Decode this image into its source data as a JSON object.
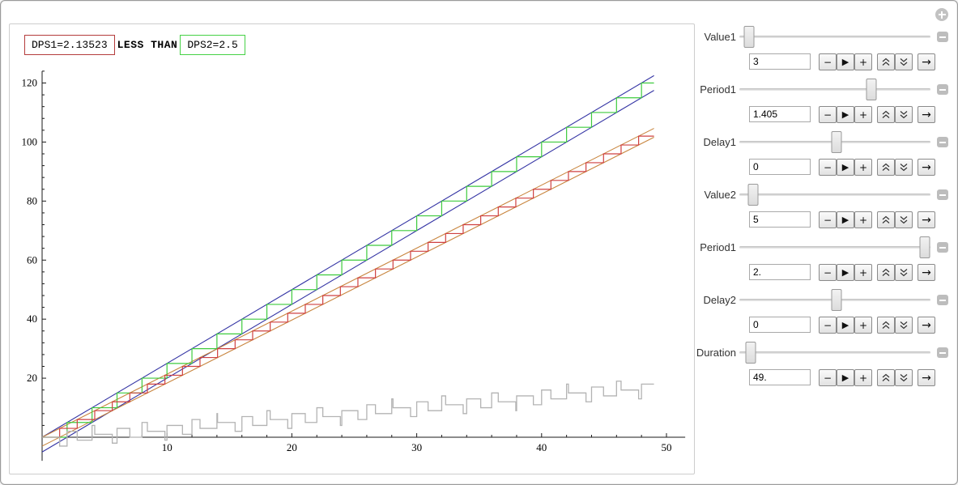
{
  "chart_data": {
    "type": "line",
    "title": "",
    "xlabel": "",
    "ylabel": "",
    "xlim": [
      0,
      51.5
    ],
    "ylim": [
      -8,
      124
    ],
    "x_ticks": [
      10,
      20,
      30,
      40,
      50
    ],
    "y_ticks": [
      20,
      40,
      60,
      80,
      100,
      120
    ],
    "x_minor_step": 2,
    "y_minor_step": 4,
    "x_data_max": 49,
    "grid": "off",
    "annotations": [
      {
        "text": "DPS1=2.13523",
        "box_color": "#b43c3c"
      },
      {
        "text": "LESS THAN",
        "box_color": ""
      },
      {
        "text": "DPS2=2.5",
        "box_color": "#46d146"
      }
    ],
    "series": [
      {
        "name": "dps2-upper-envelope",
        "type": "line",
        "slope": 2.5,
        "intercept": 0,
        "color": "#3434a4"
      },
      {
        "name": "dps2-lower-envelope",
        "type": "line",
        "slope": 2.5,
        "intercept": -5,
        "color": "#3434a4"
      },
      {
        "name": "dps1-upper-envelope",
        "type": "line",
        "slope": 2.13523,
        "intercept": 0,
        "color": "#c8853e"
      },
      {
        "name": "dps1-lower-envelope",
        "type": "line",
        "slope": 2.13523,
        "intercept": -3,
        "color": "#c8853e"
      },
      {
        "name": "value2-staircase",
        "type": "staircase",
        "step": 5,
        "period": 2,
        "color": "#3ecb3e"
      },
      {
        "name": "value1-staircase",
        "type": "staircase",
        "step": 3,
        "period": 1.405,
        "color": "#cf4040"
      },
      {
        "name": "difference-step",
        "type": "difference",
        "minuend": "value2-staircase",
        "subtrahend": "value1-staircase",
        "color": "#b3b3b3"
      }
    ],
    "axis_color": "#1a1a1a"
  },
  "controls": {
    "sliders": [
      {
        "label": "Value1",
        "value": "3",
        "thumb_pct": 5
      },
      {
        "label": "Period1",
        "value": "1.405",
        "thumb_pct": 69
      },
      {
        "label": "Delay1",
        "value": "0",
        "thumb_pct": 51
      },
      {
        "label": "Value2",
        "value": "5",
        "thumb_pct": 7
      },
      {
        "label": "Period1",
        "value": "2.",
        "thumb_pct": 97
      },
      {
        "label": "Delay2",
        "value": "0",
        "thumb_pct": 51
      },
      {
        "label": "Duration",
        "value": "49.",
        "thumb_pct": 6
      }
    ],
    "button_icons": [
      "minus",
      "play",
      "plus",
      "double-chevron-up",
      "double-chevron-down",
      "arrow-right"
    ]
  },
  "glyphs": {
    "minus": "−",
    "play": "▶",
    "plus": "+",
    "step_forward": "→"
  }
}
